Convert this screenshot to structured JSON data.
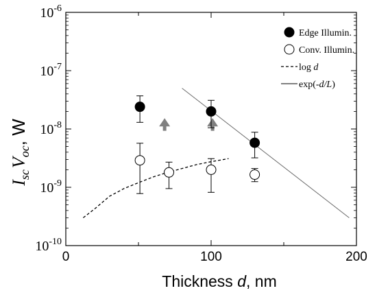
{
  "chart_data": {
    "type": "scatter",
    "xlabel": {
      "text": "Thickness ",
      "var": "d",
      "unit": ", nm"
    },
    "ylabel": {
      "i": "I",
      "i_sub": "sc",
      "v": "V",
      "v_sub": "oc",
      "unit": ", W"
    },
    "xlim": [
      0,
      200
    ],
    "ylim": [
      1e-10,
      1e-06
    ],
    "yscale": "log",
    "x_ticks": [
      "0",
      "100",
      "200"
    ],
    "y_ticks": [
      {
        "base": "10",
        "exp": "-10"
      },
      {
        "base": "10",
        "exp": "-9"
      },
      {
        "base": "10",
        "exp": "-8"
      },
      {
        "base": "10",
        "exp": "-7"
      },
      {
        "base": "10",
        "exp": "-6"
      }
    ],
    "grid": false,
    "legend_position": "top-right",
    "legend": [
      {
        "label": "Edge Illumin.",
        "marker": "filled-circle"
      },
      {
        "label": "Conv. Illumin.",
        "marker": "open-circle"
      },
      {
        "label": "log ",
        "label_var": "d",
        "marker": "dashed-line"
      },
      {
        "label": "exp(-",
        "label_var": "d/L",
        "label_end": ")",
        "marker": "solid-line"
      }
    ],
    "series": [
      {
        "name": "Edge Illumin.",
        "points": [
          {
            "x": 51,
            "y": 2.4e-08,
            "err_low": 1.3e-08,
            "err_high": 3.7e-08
          },
          {
            "x": 100,
            "y": 2e-08,
            "err_low": 1.05e-08,
            "err_high": 3.1e-08
          },
          {
            "x": 130,
            "y": 5.8e-09,
            "err_low": 3.2e-09,
            "err_high": 8.8e-09
          }
        ]
      },
      {
        "name": "Conv. Illumin.",
        "points": [
          {
            "x": 51,
            "y": 2.9e-09,
            "err_low": 7.8e-10,
            "err_high": 5.7e-09
          },
          {
            "x": 71,
            "y": 1.8e-09,
            "err_low": 9.5e-10,
            "err_high": 2.7e-09
          },
          {
            "x": 100,
            "y": 2e-09,
            "err_low": 8.2e-10,
            "err_high": 3.1e-09
          },
          {
            "x": 130,
            "y": 1.65e-09,
            "err_low": 1.25e-09,
            "err_high": 2.1e-09
          }
        ]
      },
      {
        "name": "log d",
        "style": "dashed",
        "points": [
          {
            "x": 12,
            "y": 3e-10
          },
          {
            "x": 20,
            "y": 4.3e-10
          },
          {
            "x": 30,
            "y": 7e-10
          },
          {
            "x": 40,
            "y": 9.5e-10
          },
          {
            "x": 50,
            "y": 1.2e-09
          },
          {
            "x": 60,
            "y": 1.5e-09
          },
          {
            "x": 70,
            "y": 1.8e-09
          },
          {
            "x": 80,
            "y": 2.1e-09
          },
          {
            "x": 90,
            "y": 2.45e-09
          },
          {
            "x": 100,
            "y": 2.75e-09
          },
          {
            "x": 112,
            "y": 3.1e-09
          }
        ]
      },
      {
        "name": "exp(-d/L)",
        "style": "solid",
        "points": [
          {
            "x": 80,
            "y": 5e-08
          },
          {
            "x": 195,
            "y": 3e-10
          }
        ]
      }
    ],
    "annotations": [
      {
        "type": "up-arrow",
        "x": 68,
        "y_from": 9.3e-09,
        "y_to": 1.45e-08,
        "color": "#808080"
      },
      {
        "type": "up-arrow",
        "x": 101,
        "y_from": 9.3e-09,
        "y_to": 1.45e-08,
        "color": "#808080"
      }
    ]
  }
}
